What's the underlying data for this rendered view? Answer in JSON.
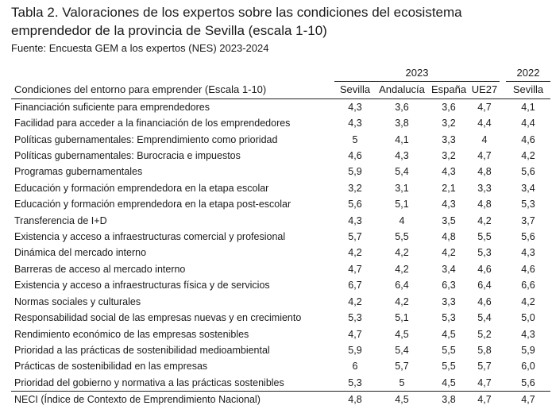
{
  "title": "Tabla 2. Valoraciones de los expertos sobre las condiciones del ecosistema emprendedor de la provincia de Sevilla (escala 1-10)",
  "source": "Fuente: Encuesta GEM a los expertos (NES) 2023-2024",
  "year_groups": {
    "y2023": "2023",
    "y2022": "2022"
  },
  "header": {
    "label": "Condiciones del entorno para emprender (Escala 1-10)",
    "columns": [
      "Sevilla",
      "Andalucía",
      "España",
      "UE27",
      "Sevilla"
    ]
  },
  "rows": [
    {
      "label": "Financiación suficiente para emprendedores",
      "values": [
        "4,3",
        "3,6",
        "3,6",
        "4,7",
        "4,1"
      ]
    },
    {
      "label": "Facilidad para acceder a la financiación de los emprendedores",
      "values": [
        "4,3",
        "3,8",
        "3,2",
        "4,4",
        "4,4"
      ]
    },
    {
      "label": "Políticas gubernamentales: Emprendimiento como prioridad",
      "values": [
        "5",
        "4,1",
        "3,3",
        "4",
        "4,6"
      ]
    },
    {
      "label": "Políticas gubernamentales: Burocracia e impuestos",
      "values": [
        "4,6",
        "4,3",
        "3,2",
        "4,7",
        "4,2"
      ]
    },
    {
      "label": "Programas gubernamentales",
      "values": [
        "5,9",
        "5,4",
        "4,3",
        "4,8",
        "5,6"
      ]
    },
    {
      "label": "Educación y formación emprendedora en la etapa escolar",
      "values": [
        "3,2",
        "3,1",
        "2,1",
        "3,3",
        "3,4"
      ]
    },
    {
      "label": "Educación y formación emprendedora en la etapa post-escolar",
      "values": [
        "5,6",
        "5,1",
        "4,3",
        "4,8",
        "5,3"
      ]
    },
    {
      "label": "Transferencia de I+D",
      "values": [
        "4,3",
        "4",
        "3,5",
        "4,2",
        "3,7"
      ]
    },
    {
      "label": "Existencia y acceso a infraestructuras comercial y profesional",
      "values": [
        "5,7",
        "5,5",
        "4,8",
        "5,5",
        "5,6"
      ]
    },
    {
      "label": "Dinámica del mercado interno",
      "values": [
        "4,2",
        "4,2",
        "4,2",
        "5,3",
        "4,3"
      ]
    },
    {
      "label": "Barreras de acceso al mercado interno",
      "values": [
        "4,7",
        "4,2",
        "3,4",
        "4,6",
        "4,6"
      ]
    },
    {
      "label": "Existencia y acceso a infraestructuras física y de servicios",
      "values": [
        "6,7",
        "6,4",
        "6,3",
        "6,4",
        "6,6"
      ]
    },
    {
      "label": "Normas sociales y culturales",
      "values": [
        "4,2",
        "4,2",
        "3,3",
        "4,6",
        "4,2"
      ]
    },
    {
      "label": "Responsabilidad social de las empresas nuevas y en crecimiento",
      "values": [
        "5,3",
        "5,1",
        "5,3",
        "5,4",
        "5,0"
      ]
    },
    {
      "label": "Rendimiento económico de las empresas sostenibles",
      "values": [
        "4,7",
        "4,5",
        "4,5",
        "5,2",
        "4,3"
      ]
    },
    {
      "label": "Prioridad a las prácticas de sostenibilidad medioambiental",
      "values": [
        "5,9",
        "5,4",
        "5,5",
        "5,8",
        "5,9"
      ]
    },
    {
      "label": "Prácticas de sostenibilidad en las empresas",
      "values": [
        "6",
        "5,7",
        "5,5",
        "5,7",
        "6,0"
      ]
    },
    {
      "label": "Prioridad del gobierno y normativa a las prácticas sostenibles",
      "values": [
        "5,3",
        "5",
        "4,5",
        "4,7",
        "5,6"
      ]
    }
  ],
  "total": {
    "label": "NECI (Índice de Contexto de Emprendimiento Nacional)",
    "values": [
      "4,8",
      "4,5",
      "3,8",
      "4,7",
      "4,7"
    ]
  }
}
